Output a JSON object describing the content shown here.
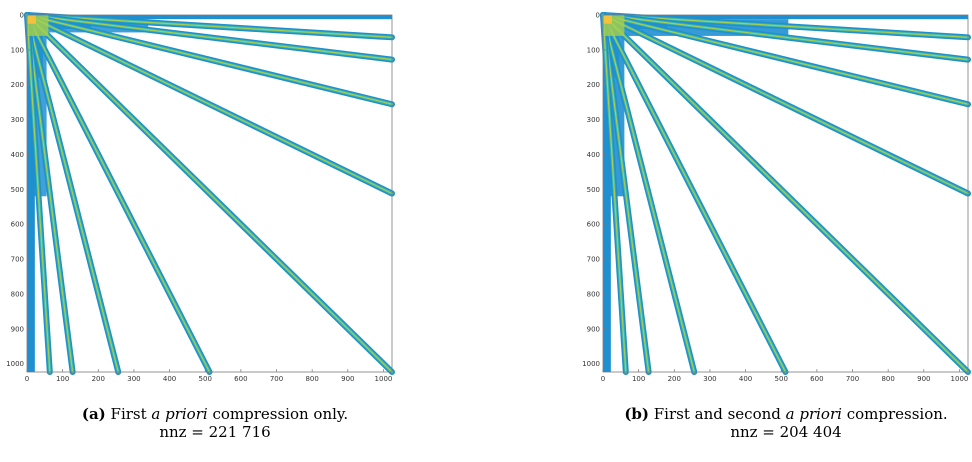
{
  "chart_data": [
    {
      "type": "heatmap",
      "xlim": [
        0,
        1024
      ],
      "ylim": [
        0,
        1024
      ],
      "x_ticks": [
        0,
        100,
        200,
        300,
        400,
        500,
        600,
        700,
        800,
        900,
        1000
      ],
      "y_ticks": [
        0,
        100,
        200,
        300,
        400,
        500,
        600,
        700,
        800,
        900,
        1000
      ],
      "rays_end": [
        [
          1024,
          64
        ],
        [
          1024,
          128
        ],
        [
          1024,
          256
        ],
        [
          1024,
          512
        ],
        [
          1024,
          1024
        ],
        [
          512,
          1024
        ],
        [
          256,
          1024
        ],
        [
          128,
          1024
        ],
        [
          64,
          1024
        ]
      ],
      "second_compression": false,
      "caption": {
        "label": "(a)",
        "text_before": " First ",
        "italic": "a priori",
        "text_after": " compression only.",
        "nnz": "nnz = 221 716"
      }
    },
    {
      "type": "heatmap",
      "xlim": [
        0,
        1024
      ],
      "ylim": [
        0,
        1024
      ],
      "x_ticks": [
        0,
        100,
        200,
        300,
        400,
        500,
        600,
        700,
        800,
        900,
        1000
      ],
      "y_ticks": [
        0,
        100,
        200,
        300,
        400,
        500,
        600,
        700,
        800,
        900,
        1000
      ],
      "rays_end": [
        [
          1024,
          64
        ],
        [
          1024,
          128
        ],
        [
          1024,
          256
        ],
        [
          1024,
          512
        ],
        [
          1024,
          1024
        ],
        [
          512,
          1024
        ],
        [
          256,
          1024
        ],
        [
          128,
          1024
        ],
        [
          64,
          1024
        ]
      ],
      "second_compression": true,
      "caption": {
        "label": "(b)",
        "text_before": " First and second ",
        "italic": "a priori",
        "text_after": " compression.",
        "nnz": "nnz = 204 404"
      }
    }
  ],
  "colors": {
    "low": "#1f8fd0",
    "mid": "#3bb5b0",
    "high": "#a7cf4a",
    "peak": "#f3c13a",
    "axis": "#7a7a7a"
  }
}
